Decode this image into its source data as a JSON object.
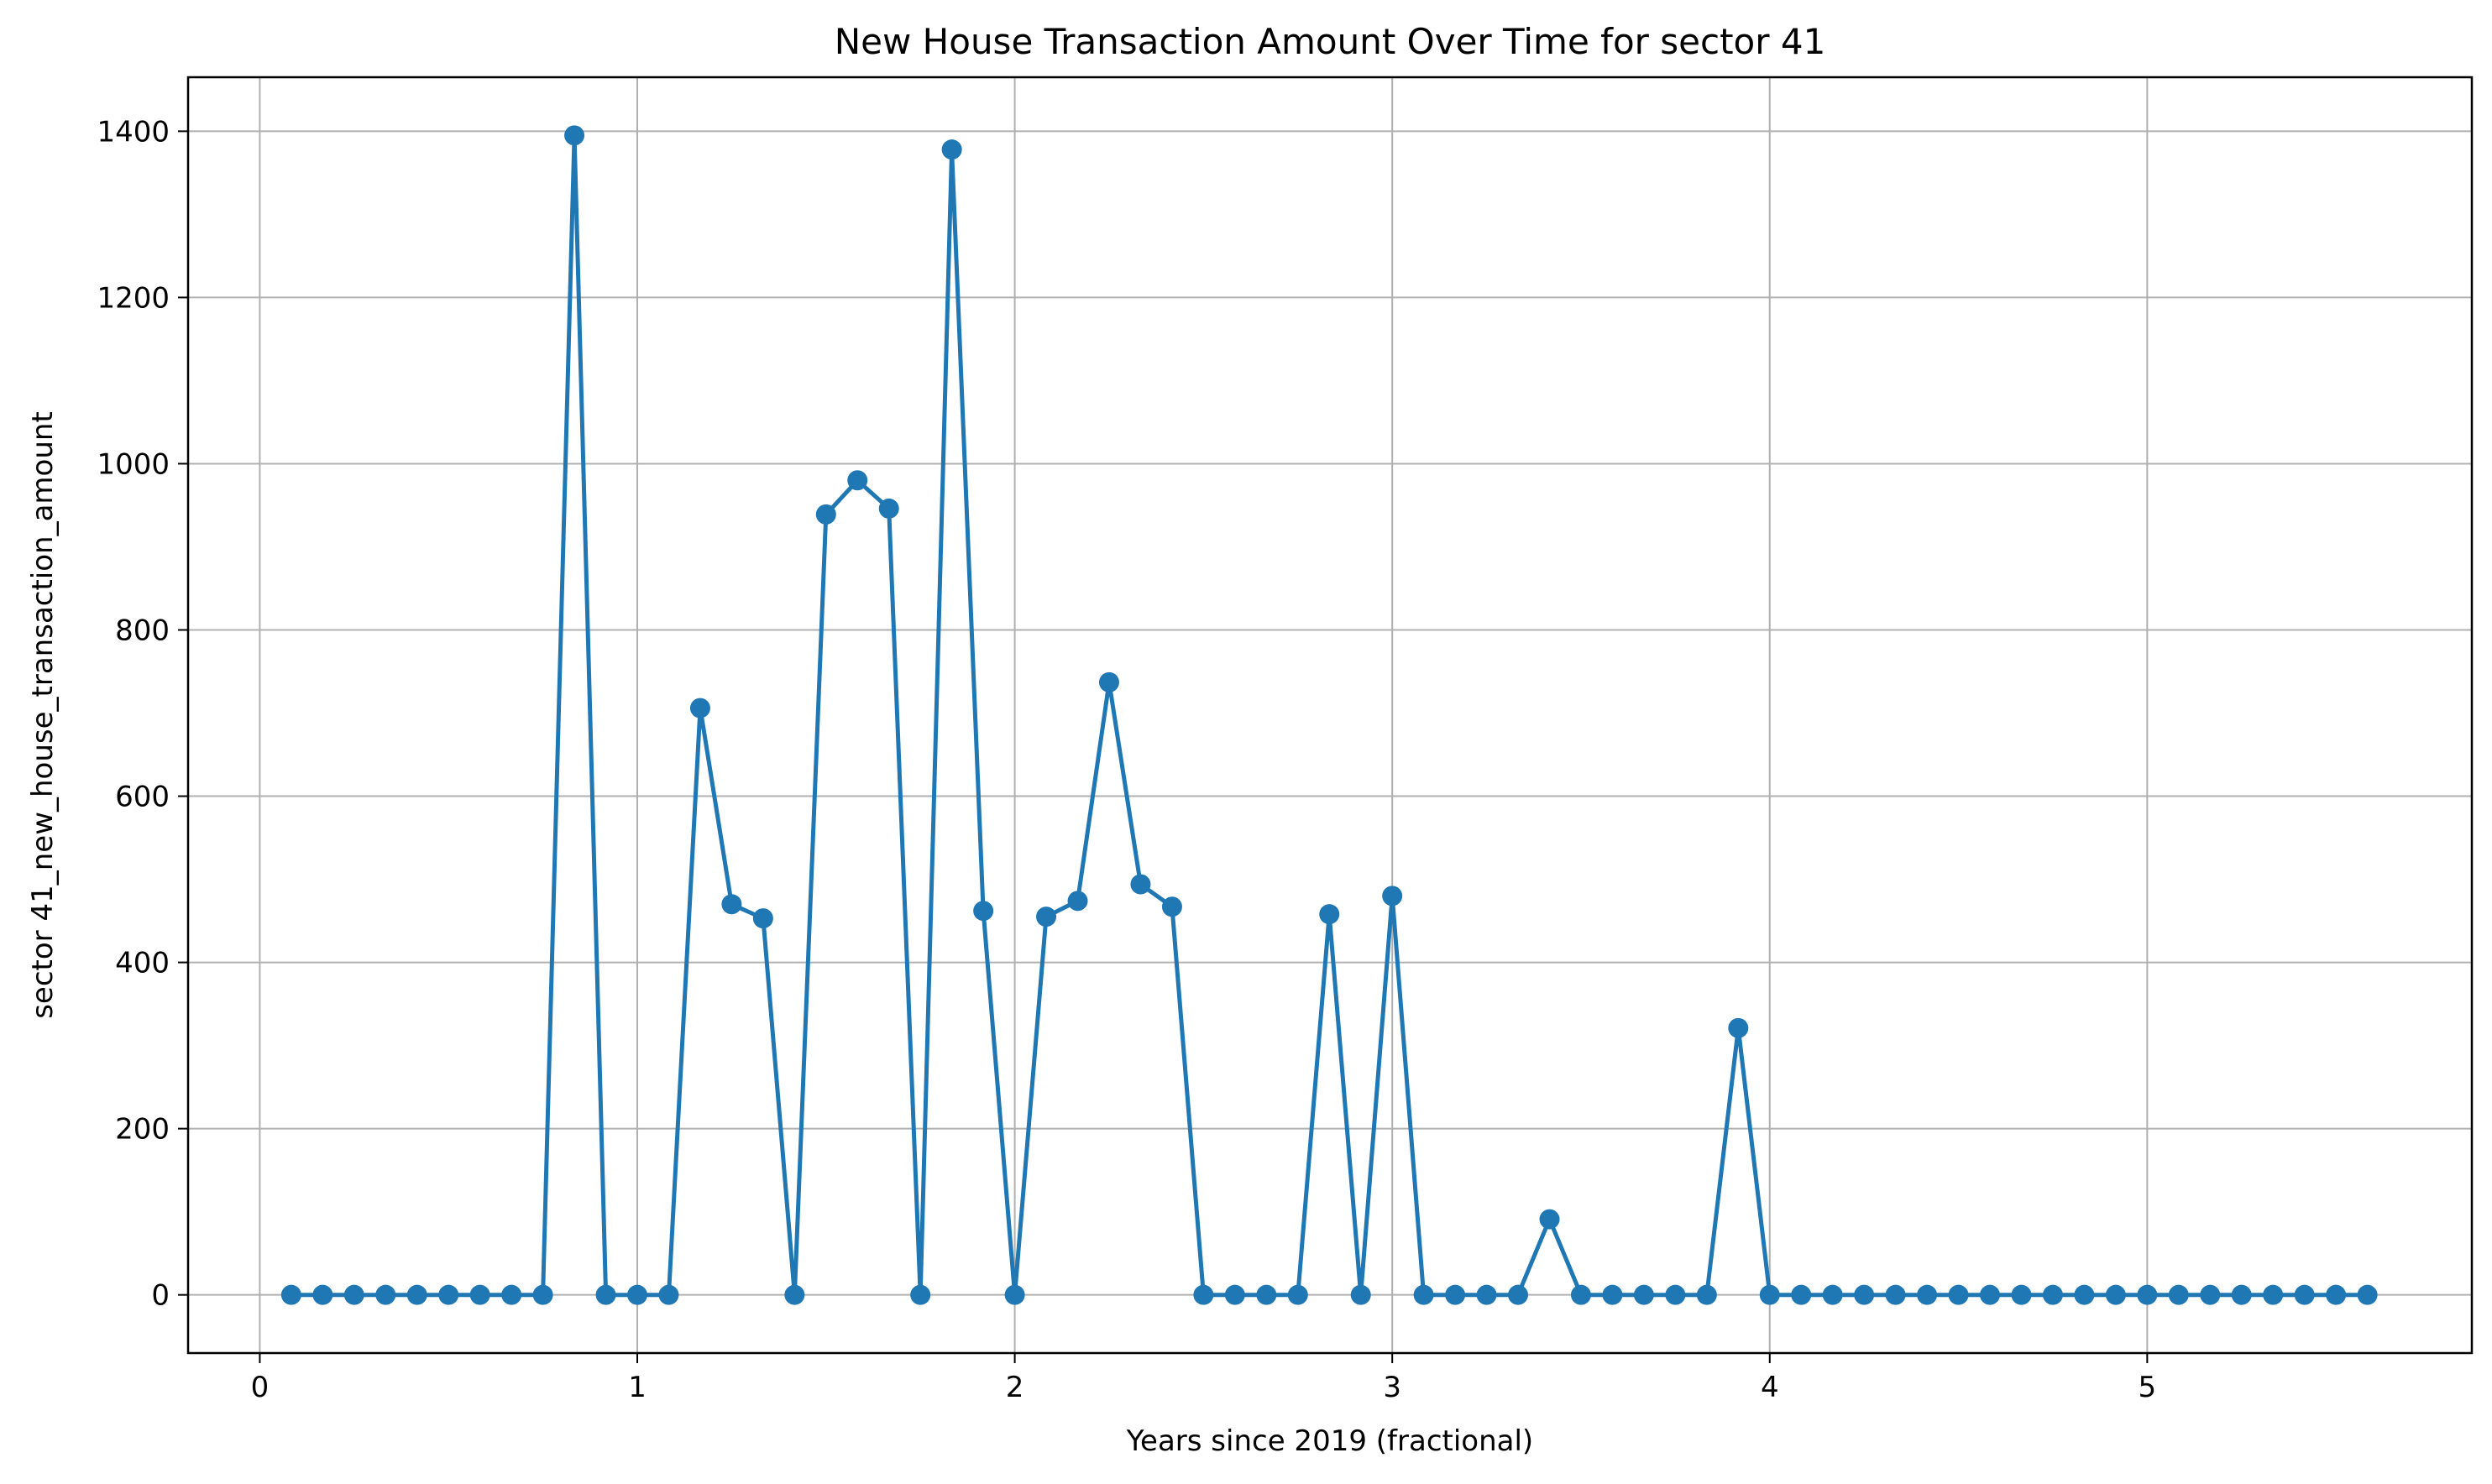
{
  "chart_data": {
    "type": "line",
    "title": "New House Transaction Amount Over Time for sector 41",
    "xlabel": "Years since 2019 (fractional)",
    "ylabel": "sector 41_new_house_transaction_amount",
    "xlim": [
      -0.19,
      5.86
    ],
    "ylim": [
      -70,
      1465
    ],
    "xticks": [
      0,
      1,
      2,
      3,
      4,
      5
    ],
    "yticks": [
      0,
      200,
      400,
      600,
      800,
      1000,
      1200,
      1400
    ],
    "grid": true,
    "color": "#1f77b4",
    "marker": "circle",
    "x": [
      0.0833,
      0.1667,
      0.25,
      0.3333,
      0.4167,
      0.5,
      0.5833,
      0.6667,
      0.75,
      0.8333,
      0.9167,
      1.0,
      1.0833,
      1.1667,
      1.25,
      1.3333,
      1.4167,
      1.5,
      1.5833,
      1.6667,
      1.75,
      1.8333,
      1.9167,
      2.0,
      2.0833,
      2.1667,
      2.25,
      2.3333,
      2.4167,
      2.5,
      2.5833,
      2.6667,
      2.75,
      2.8333,
      2.9167,
      3.0,
      3.0833,
      3.1667,
      3.25,
      3.3333,
      3.4167,
      3.5,
      3.5833,
      3.6667,
      3.75,
      3.8333,
      3.9167,
      4.0,
      4.0833,
      4.1667,
      4.25,
      4.3333,
      4.4167,
      4.5,
      4.5833,
      4.6667,
      4.75,
      4.8333,
      4.9167,
      5.0,
      5.0833,
      5.1667,
      5.25,
      5.3333,
      5.4167,
      5.5,
      5.5833
    ],
    "y": [
      0,
      0,
      0,
      0,
      0,
      0,
      0,
      0,
      0,
      1395,
      0,
      0,
      0,
      706,
      470,
      453,
      0,
      939,
      980,
      946,
      0,
      1378,
      462,
      0,
      455,
      474,
      737,
      494,
      467,
      0,
      0,
      0,
      0,
      458,
      0,
      480,
      0,
      0,
      0,
      0,
      91,
      0,
      0,
      0,
      0,
      0,
      321,
      0,
      0,
      0,
      0,
      0,
      0,
      0,
      0,
      0,
      0,
      0,
      0,
      0,
      0,
      0,
      0,
      0,
      0,
      0,
      0
    ]
  }
}
